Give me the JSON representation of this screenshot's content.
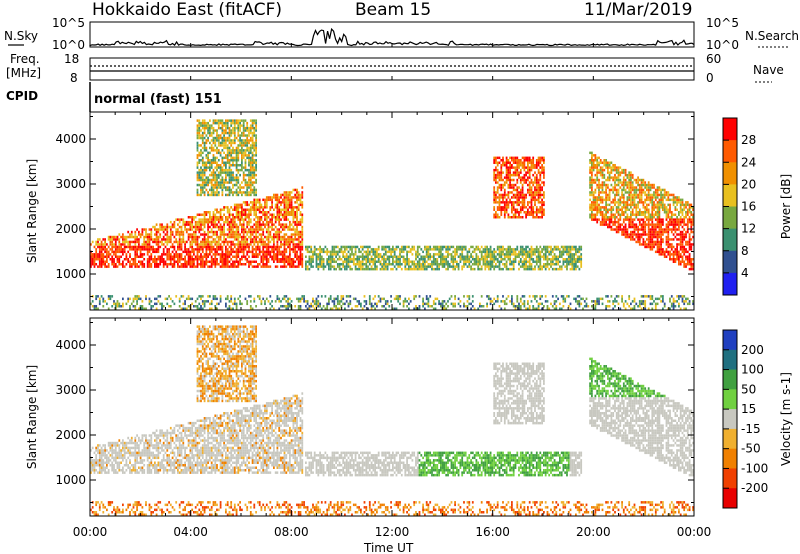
{
  "header": {
    "title": "Hokkaido East (fitACF)",
    "beam": "Beam 15",
    "date": "11/Mar/2019"
  },
  "panels": {
    "nsky": {
      "label": "N.Sky",
      "ticks_left": [
        "10^5",
        "10^0"
      ],
      "ticks_right": [
        "10^5",
        "10^0"
      ],
      "right_label": "N.Search"
    },
    "freq": {
      "label_1": "Freq.",
      "label_2": "[MHz]",
      "ticks_left": [
        "18",
        "8"
      ],
      "ticks_right": [
        "60",
        "0"
      ],
      "right_label": "Nave"
    },
    "cpid": {
      "label": "CPID",
      "text": "normal (fast) 151"
    }
  },
  "chart_data": [
    {
      "type": "heatmap",
      "quantity": "power",
      "ylabel": "Slant Range [km]",
      "y_ticks": [
        "4000",
        "3000",
        "2000",
        "1000"
      ],
      "y_tick_values": [
        4000,
        3000,
        2000,
        1000
      ],
      "ylim": [
        200,
        4600
      ],
      "x_ticks": [
        "00:00",
        "04:00",
        "08:00",
        "12:00",
        "16:00",
        "20:00",
        "00:00"
      ],
      "xlim_hours": [
        0,
        24
      ],
      "colorbar": {
        "label": "Power [dB]",
        "tick_labels": [
          "28",
          "24",
          "20",
          "16",
          "12",
          "8",
          "4"
        ],
        "colors": [
          "#ff0000",
          "#ff5a00",
          "#f09000",
          "#e8c020",
          "#78a840",
          "#3a9070",
          "#305090",
          "#2020f0"
        ]
      },
      "regions": [
        {
          "name": "lower-band",
          "t_start": 0.0,
          "t_end": 8.4,
          "r_low": 1100,
          "r_high_start": 1700,
          "r_high_end": 2900
        },
        {
          "name": "far-patch",
          "t_start": 4.2,
          "t_end": 6.6,
          "r_low": 2700,
          "r_high": 4400
        },
        {
          "name": "mid-band",
          "t_start": 8.5,
          "t_end": 19.5,
          "r_low": 1050,
          "r_high": 1600
        },
        {
          "name": "dawn-patch",
          "t_start": 16.0,
          "t_end": 18.0,
          "r_low": 2200,
          "r_high": 3600
        },
        {
          "name": "evening-band",
          "t_start": 19.8,
          "t_end": 24.0,
          "r_low": 1000,
          "r_high": 3700
        }
      ]
    },
    {
      "type": "heatmap",
      "quantity": "velocity",
      "ylabel": "Slant Range [km]",
      "y_ticks": [
        "4000",
        "3000",
        "2000",
        "1000"
      ],
      "y_tick_values": [
        4000,
        3000,
        2000,
        1000
      ],
      "ylim": [
        200,
        4600
      ],
      "x_ticks": [
        "00:00",
        "04:00",
        "08:00",
        "12:00",
        "16:00",
        "20:00",
        "00:00"
      ],
      "xlim_hours": [
        0,
        24
      ],
      "xlabel": "Time UT",
      "colorbar": {
        "label": "Velocity [m s-1]",
        "tick_labels": [
          "200",
          "100",
          "50",
          "15",
          "-15",
          "-50",
          "-100",
          "-200"
        ],
        "colors": [
          "#2040c0",
          "#207080",
          "#40a040",
          "#70d040",
          "#c8c8c0",
          "#f0b030",
          "#f08000",
          "#f04000",
          "#e80000"
        ]
      }
    }
  ]
}
